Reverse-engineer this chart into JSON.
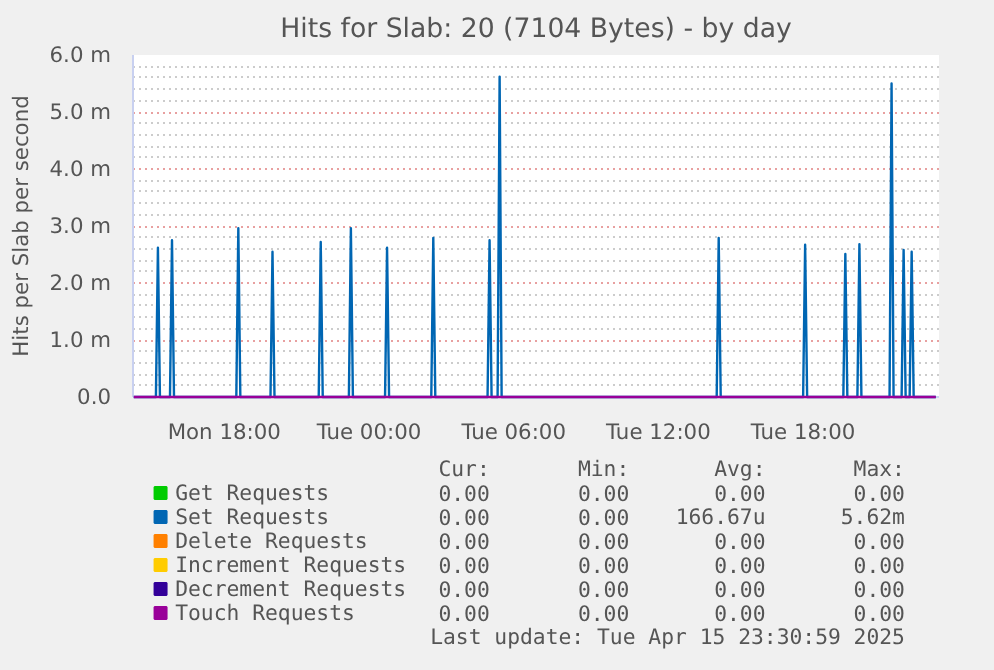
{
  "chart_data": {
    "type": "line",
    "title": "Hits for Slab: 20 (7104 Bytes) - by day",
    "ylabel": "Hits per Slab per second",
    "xlim": [
      "2025-04-14T14:13",
      "2025-04-15T23:38"
    ],
    "xticks": [
      {
        "value": "2025-04-14T18:00",
        "label": "Mon 18:00"
      },
      {
        "value": "2025-04-15T00:00",
        "label": "Tue 00:00"
      },
      {
        "value": "2025-04-15T06:00",
        "label": "Tue 06:00"
      },
      {
        "value": "2025-04-15T12:00",
        "label": "Tue 12:00"
      },
      {
        "value": "2025-04-15T18:00",
        "label": "Tue 18:00"
      }
    ],
    "ylim": [
      0,
      6
    ],
    "yticks": [
      {
        "value": 0,
        "label": "0.0"
      },
      {
        "value": 1,
        "label": "1.0 m"
      },
      {
        "value": 2,
        "label": "2.0 m"
      },
      {
        "value": 3,
        "label": "3.0 m"
      },
      {
        "value": 4,
        "label": "4.0 m"
      },
      {
        "value": 5,
        "label": "5.0 m"
      },
      {
        "value": 6,
        "label": "6.0 m"
      }
    ],
    "grid": true,
    "legend": "bottom",
    "marker": "none",
    "line_style": "solid",
    "series": [
      {
        "name": "Get Requests",
        "color": "#00cc00"
      },
      {
        "name": "Set Requests",
        "color": "#0066b3",
        "x": [
          "2025-04-14T14:15",
          "2025-04-14T15:10",
          "2025-04-14T15:15",
          "2025-04-14T15:20",
          "2025-04-14T15:45",
          "2025-04-14T15:50",
          "2025-04-14T15:55",
          "2025-04-14T18:30",
          "2025-04-14T18:35",
          "2025-04-14T18:40",
          "2025-04-14T19:55",
          "2025-04-14T20:00",
          "2025-04-14T20:05",
          "2025-04-14T21:55",
          "2025-04-14T22:00",
          "2025-04-14T22:05",
          "2025-04-14T23:10",
          "2025-04-14T23:15",
          "2025-04-14T23:20",
          "2025-04-15T00:40",
          "2025-04-15T00:45",
          "2025-04-15T00:50",
          "2025-04-15T02:35",
          "2025-04-15T02:40",
          "2025-04-15T02:45",
          "2025-04-15T04:55",
          "2025-04-15T05:00",
          "2025-04-15T05:05",
          "2025-04-15T05:20",
          "2025-04-15T05:25",
          "2025-04-15T05:30",
          "2025-04-15T14:25",
          "2025-04-15T14:30",
          "2025-04-15T14:35",
          "2025-04-15T18:00",
          "2025-04-15T18:05",
          "2025-04-15T18:10",
          "2025-04-15T19:40",
          "2025-04-15T19:45",
          "2025-04-15T19:50",
          "2025-04-15T20:15",
          "2025-04-15T20:20",
          "2025-04-15T20:25",
          "2025-04-15T21:35",
          "2025-04-15T21:40",
          "2025-04-15T21:45",
          "2025-04-15T22:05",
          "2025-04-15T22:10",
          "2025-04-15T22:15",
          "2025-04-15T22:25",
          "2025-04-15T22:30",
          "2025-04-15T22:35",
          "2025-04-15T23:30"
        ],
        "values": [
          0,
          0,
          2.62,
          0,
          0,
          2.75,
          0,
          0,
          2.96,
          0,
          0,
          2.55,
          0,
          0,
          2.72,
          0,
          0,
          2.96,
          0,
          0,
          2.62,
          0,
          0,
          2.79,
          0,
          0,
          2.75,
          0,
          0,
          5.62,
          0,
          0,
          2.79,
          0,
          0,
          2.67,
          0,
          0,
          2.51,
          0,
          0,
          2.68,
          0,
          0,
          5.5,
          0,
          0,
          2.58,
          0,
          0,
          2.55,
          0,
          0
        ]
      },
      {
        "name": "Delete Requests",
        "color": "#ff8000"
      },
      {
        "name": "Increment Requests",
        "color": "#ffcc00"
      },
      {
        "name": "Decrement Requests",
        "color": "#330099"
      },
      {
        "name": "Touch Requests",
        "color": "#990099",
        "x": [
          "2025-04-14T14:15",
          "2025-04-15T23:30"
        ],
        "values": [
          0,
          0
        ]
      }
    ],
    "annotations": [
      "Cur:",
      "Min:",
      "Avg:",
      "Max:",
      "0.00",
      "0.00",
      "0.00",
      "0.00",
      "0.00",
      "0.00",
      "166.67u",
      "5.62m",
      "0.00",
      "0.00",
      "0.00",
      "0.00",
      "0.00",
      "0.00",
      "0.00",
      "0.00",
      "0.00",
      "0.00",
      "0.00",
      "0.00",
      "0.00",
      "0.00",
      "0.00",
      "0.00",
      "Last update: Tue Apr 15 23:30:59 2025"
    ]
  }
}
